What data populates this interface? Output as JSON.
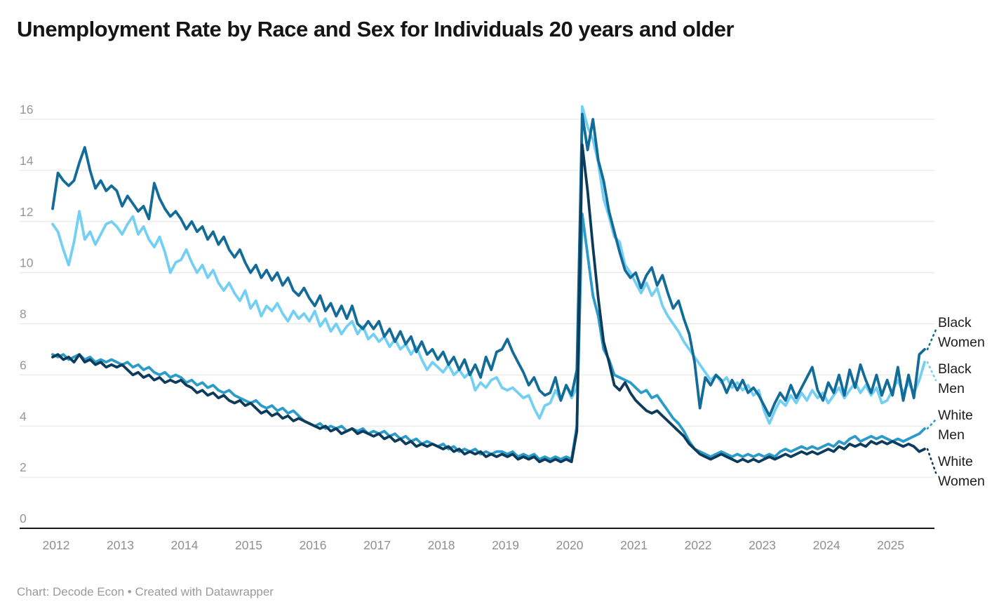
{
  "header": {
    "title": "Unemployment Rate by Race and Sex for Individuals 20 years and older"
  },
  "footer": {
    "credit": "Chart: Decode Econ • Created with Datawrapper"
  },
  "chart_data": {
    "type": "line",
    "title": "Unemployment Rate by Race and Sex for Individuals 20 years and older",
    "x_frequency": "monthly",
    "x_start": "2012-01",
    "x_end": "2025-08",
    "x_tick_labels": [
      "2012",
      "2013",
      "2014",
      "2015",
      "2016",
      "2017",
      "2018",
      "2019",
      "2020",
      "2021",
      "2022",
      "2023",
      "2024",
      "2025"
    ],
    "y_ticks": [
      0,
      2,
      4,
      6,
      8,
      10,
      12,
      14,
      16
    ],
    "ylim": [
      0,
      16.6
    ],
    "grid": true,
    "legend_position": "right-of-line-ends",
    "axis_color": "#161616",
    "gridline_color": "#e4e4e4",
    "tick_label_color": "#979797",
    "series": [
      {
        "name": "black-women",
        "label": "Black Women",
        "color": "#136c98",
        "values": [
          12.5,
          13.9,
          13.6,
          13.4,
          13.6,
          14.3,
          14.9,
          14.0,
          13.3,
          13.6,
          13.2,
          13.4,
          13.2,
          12.6,
          13.0,
          12.7,
          12.4,
          12.6,
          12.1,
          13.5,
          12.9,
          12.5,
          12.2,
          12.4,
          12.1,
          11.7,
          12.0,
          11.6,
          11.8,
          11.3,
          11.6,
          11.1,
          11.4,
          10.9,
          10.6,
          10.9,
          10.4,
          10.0,
          10.3,
          9.8,
          10.1,
          9.7,
          10.0,
          9.5,
          9.8,
          9.3,
          9.1,
          9.4,
          9.0,
          8.7,
          9.1,
          8.5,
          8.8,
          8.3,
          8.7,
          8.2,
          8.7,
          8.0,
          7.8,
          8.1,
          7.8,
          8.1,
          7.5,
          7.8,
          7.3,
          7.7,
          7.2,
          7.5,
          6.9,
          7.3,
          6.8,
          7.0,
          6.6,
          6.9,
          6.4,
          6.7,
          6.2,
          6.6,
          6.0,
          6.4,
          5.9,
          6.7,
          6.2,
          6.9,
          7.0,
          7.4,
          6.9,
          6.5,
          6.1,
          5.6,
          5.9,
          5.4,
          5.2,
          5.3,
          5.9,
          5.0,
          5.6,
          5.2,
          6.2,
          16.2,
          14.8,
          16.0,
          14.4,
          13.6,
          12.4,
          11.6,
          10.8,
          10.1,
          9.8,
          10.0,
          9.4,
          9.9,
          10.2,
          9.5,
          9.9,
          9.2,
          8.6,
          8.9,
          8.2,
          7.6,
          6.5,
          4.7,
          5.9,
          5.6,
          6.0,
          5.8,
          5.3,
          5.8,
          5.4,
          5.8,
          5.3,
          5.5,
          5.2,
          4.8,
          4.4,
          4.9,
          5.3,
          5.0,
          5.6,
          5.1,
          5.5,
          5.9,
          6.3,
          5.4,
          5.0,
          5.7,
          5.3,
          6.0,
          5.2,
          6.2,
          5.5,
          6.4,
          5.8,
          5.3,
          6.0,
          5.2,
          5.8,
          5.2,
          6.3,
          5.0,
          6.0,
          5.1,
          6.8,
          7.0
        ]
      },
      {
        "name": "black-men",
        "label": "Black Men",
        "color": "#73cff3",
        "values": [
          11.9,
          11.6,
          10.9,
          10.3,
          11.2,
          12.4,
          11.3,
          11.6,
          11.1,
          11.5,
          11.9,
          12.0,
          11.8,
          11.5,
          11.9,
          12.2,
          11.5,
          11.8,
          11.3,
          11.0,
          11.4,
          10.8,
          10.0,
          10.4,
          10.5,
          10.9,
          10.4,
          10.0,
          10.3,
          9.8,
          10.1,
          9.6,
          9.3,
          9.6,
          9.2,
          8.9,
          9.3,
          8.6,
          8.9,
          8.3,
          8.7,
          8.5,
          8.8,
          8.4,
          8.1,
          8.5,
          8.2,
          8.4,
          8.1,
          8.5,
          7.9,
          8.2,
          7.7,
          8.0,
          7.6,
          7.9,
          8.1,
          7.6,
          7.9,
          7.4,
          7.6,
          7.3,
          7.5,
          7.1,
          7.4,
          7.0,
          7.2,
          6.8,
          7.1,
          6.6,
          6.2,
          6.5,
          6.3,
          6.1,
          6.4,
          6.0,
          6.2,
          5.9,
          6.1,
          5.4,
          5.7,
          5.5,
          5.8,
          5.9,
          5.5,
          5.4,
          5.5,
          5.3,
          5.1,
          5.2,
          4.7,
          4.3,
          4.8,
          4.9,
          5.4,
          5.0,
          5.6,
          5.1,
          5.5,
          16.5,
          15.7,
          15.2,
          14.3,
          12.9,
          12.2,
          11.4,
          11.2,
          10.3,
          10.0,
          9.6,
          9.2,
          9.6,
          9.1,
          9.4,
          8.7,
          8.3,
          8.0,
          7.7,
          7.3,
          7.0,
          6.7,
          6.4,
          6.1,
          5.8,
          6.0,
          5.7,
          5.9,
          5.5,
          5.7,
          5.4,
          5.6,
          5.2,
          5.4,
          4.6,
          4.1,
          4.6,
          5.0,
          4.8,
          5.2,
          4.9,
          5.3,
          5.0,
          5.4,
          5.1,
          5.3,
          4.9,
          5.2,
          5.5,
          5.1,
          5.4,
          5.7,
          5.3,
          5.6,
          5.2,
          5.5,
          4.9,
          5.0,
          5.4,
          5.8,
          5.3,
          5.7,
          5.3,
          5.8,
          6.5
        ]
      },
      {
        "name": "white-men",
        "label": "White Men",
        "color": "#2b9bc9",
        "values": [
          6.8,
          6.7,
          6.8,
          6.6,
          6.7,
          6.8,
          6.6,
          6.7,
          6.5,
          6.6,
          6.5,
          6.6,
          6.5,
          6.4,
          6.5,
          6.3,
          6.4,
          6.2,
          6.3,
          6.1,
          6.0,
          6.1,
          5.9,
          6.0,
          5.9,
          5.7,
          5.8,
          5.6,
          5.7,
          5.5,
          5.6,
          5.4,
          5.3,
          5.4,
          5.2,
          5.1,
          5.0,
          4.9,
          5.0,
          4.8,
          4.7,
          4.8,
          4.6,
          4.7,
          4.5,
          4.6,
          4.4,
          4.2,
          4.1,
          4.0,
          4.1,
          3.9,
          4.0,
          3.9,
          4.0,
          3.8,
          3.9,
          3.8,
          3.9,
          3.7,
          3.8,
          3.7,
          3.8,
          3.6,
          3.7,
          3.5,
          3.6,
          3.4,
          3.5,
          3.3,
          3.4,
          3.3,
          3.2,
          3.3,
          3.1,
          3.2,
          3.0,
          3.1,
          3.0,
          3.1,
          2.9,
          3.0,
          2.9,
          3.0,
          3.0,
          2.9,
          3.0,
          2.8,
          2.9,
          2.8,
          2.9,
          2.7,
          2.8,
          2.7,
          2.8,
          2.7,
          2.8,
          2.7,
          4.0,
          12.3,
          10.7,
          9.1,
          8.3,
          7.0,
          6.6,
          6.0,
          5.9,
          5.8,
          5.7,
          5.5,
          5.3,
          5.4,
          5.1,
          5.2,
          4.9,
          4.6,
          4.3,
          4.1,
          3.8,
          3.4,
          3.1,
          3.0,
          2.9,
          2.8,
          2.9,
          3.0,
          2.9,
          2.8,
          2.9,
          2.8,
          2.9,
          2.8,
          2.9,
          2.8,
          2.9,
          2.8,
          3.0,
          3.1,
          3.0,
          3.1,
          3.2,
          3.1,
          3.2,
          3.1,
          3.2,
          3.3,
          3.2,
          3.4,
          3.3,
          3.5,
          3.6,
          3.4,
          3.5,
          3.6,
          3.5,
          3.6,
          3.5,
          3.4,
          3.5,
          3.4,
          3.5,
          3.6,
          3.7,
          3.9
        ]
      },
      {
        "name": "white-women",
        "label": "White Women",
        "color": "#0d3b5c",
        "values": [
          6.7,
          6.8,
          6.6,
          6.7,
          6.5,
          6.8,
          6.5,
          6.6,
          6.4,
          6.5,
          6.3,
          6.4,
          6.3,
          6.4,
          6.2,
          6.0,
          6.1,
          5.9,
          6.0,
          5.8,
          5.9,
          5.7,
          5.8,
          5.7,
          5.8,
          5.6,
          5.5,
          5.3,
          5.4,
          5.2,
          5.3,
          5.1,
          5.2,
          5.0,
          4.9,
          5.0,
          4.8,
          4.9,
          4.7,
          4.5,
          4.6,
          4.4,
          4.5,
          4.3,
          4.4,
          4.2,
          4.3,
          4.2,
          4.1,
          4.0,
          3.9,
          4.0,
          3.8,
          3.9,
          3.7,
          3.8,
          3.9,
          3.7,
          3.8,
          3.7,
          3.6,
          3.7,
          3.5,
          3.6,
          3.4,
          3.5,
          3.3,
          3.4,
          3.2,
          3.3,
          3.2,
          3.3,
          3.2,
          3.1,
          3.2,
          3.0,
          3.1,
          2.9,
          3.0,
          2.9,
          3.0,
          2.8,
          2.9,
          2.8,
          2.9,
          2.8,
          2.9,
          2.7,
          2.8,
          2.7,
          2.8,
          2.6,
          2.7,
          2.6,
          2.7,
          2.6,
          2.7,
          2.6,
          3.8,
          15.0,
          13.2,
          11.0,
          9.0,
          7.3,
          6.5,
          5.6,
          5.4,
          5.7,
          5.3,
          5.0,
          4.8,
          4.6,
          4.5,
          4.6,
          4.4,
          4.2,
          4.0,
          3.8,
          3.6,
          3.3,
          3.1,
          2.9,
          2.8,
          2.7,
          2.8,
          2.9,
          2.8,
          2.7,
          2.6,
          2.7,
          2.6,
          2.7,
          2.6,
          2.7,
          2.8,
          2.7,
          2.8,
          2.9,
          2.8,
          2.9,
          3.0,
          2.9,
          3.0,
          2.9,
          3.0,
          3.1,
          3.0,
          3.2,
          3.1,
          3.3,
          3.2,
          3.3,
          3.2,
          3.4,
          3.3,
          3.4,
          3.3,
          3.4,
          3.3,
          3.2,
          3.3,
          3.2,
          3.0,
          3.1
        ]
      }
    ]
  }
}
